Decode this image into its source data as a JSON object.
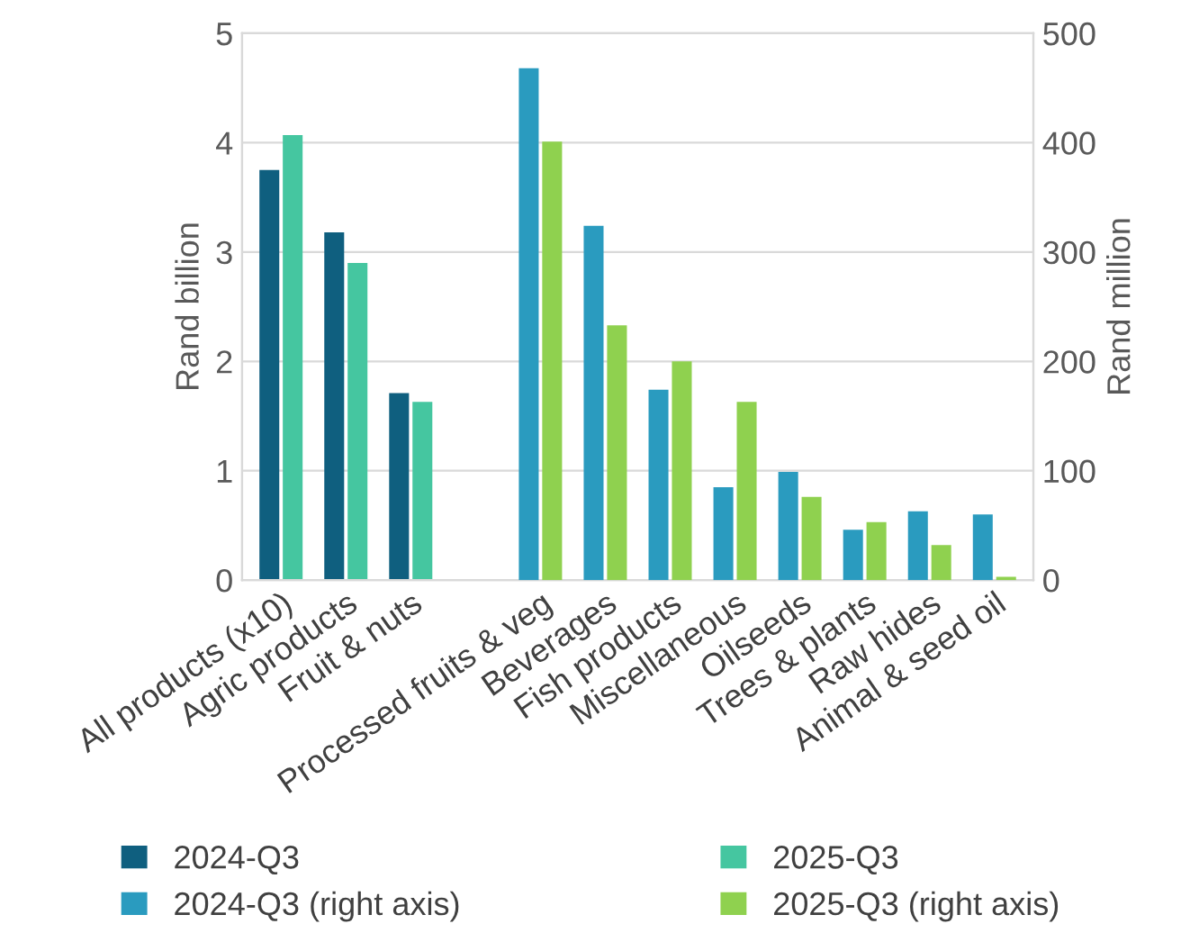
{
  "chart_data": {
    "type": "bar",
    "ylabel": "Rand billion",
    "y2label": "Rand million",
    "categories": [
      "All products (x10)",
      "Agric products",
      "Fruit & nuts",
      null,
      "Processed fruits & veg",
      "Beverages",
      "Fish products",
      "Miscellaneous",
      "Oilseeds",
      "Trees & plants",
      "Raw hides",
      "Animal & seed oil"
    ],
    "series": [
      {
        "name": "2024-Q3",
        "color": "#0f5f7f",
        "values": [
          3.75,
          3.18,
          1.71,
          null,
          null,
          null,
          null,
          null,
          null,
          null,
          null,
          null
        ]
      },
      {
        "name": "2025-Q3",
        "color": "#45c6a0",
        "values": [
          4.07,
          2.9,
          1.63,
          null,
          null,
          null,
          null,
          null,
          null,
          null,
          null,
          null
        ]
      },
      {
        "name": "2024-Q3 (right axis)",
        "color": "#2a9bbf",
        "axis": "y2",
        "values": [
          null,
          null,
          null,
          null,
          468,
          324,
          174,
          85,
          99,
          46,
          63,
          60
        ]
      },
      {
        "name": "2025-Q3 (right axis)",
        "color": "#8fd14f",
        "axis": "y2",
        "values": [
          null,
          null,
          null,
          null,
          401,
          233,
          200,
          163,
          76,
          53,
          32,
          3
        ]
      }
    ],
    "ylim": [
      0,
      5
    ],
    "yticks": [
      0,
      1,
      2,
      3,
      4,
      5
    ],
    "y2lim": [
      0,
      500
    ],
    "y2ticks": [
      0,
      100,
      200,
      300,
      400,
      500
    ],
    "grid": "y",
    "legend": "bottom"
  }
}
